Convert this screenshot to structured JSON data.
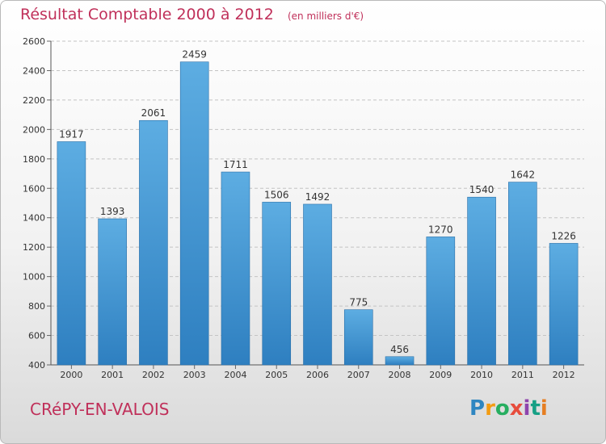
{
  "header": {
    "title": "Résultat Comptable 2000 à 2012",
    "subtitle": "(en milliers d'€)"
  },
  "footer": {
    "place": "CRéPY-EN-VALOIS"
  },
  "logo": {
    "letters": [
      "P",
      "r",
      "o",
      "x",
      "i",
      "t",
      "i"
    ]
  },
  "colors": {
    "bar_top": "#5dade2",
    "bar_bottom": "#2e7fc0",
    "accent": "#c0305a"
  },
  "chart_data": {
    "type": "bar",
    "title": "Résultat Comptable 2000 à 2012",
    "subtitle": "(en milliers d'€)",
    "categories": [
      "2000",
      "2001",
      "2002",
      "2003",
      "2004",
      "2005",
      "2006",
      "2007",
      "2008",
      "2009",
      "2010",
      "2011",
      "2012"
    ],
    "values": [
      1917,
      1393,
      2061,
      2459,
      1711,
      1506,
      1492,
      775,
      456,
      1270,
      1540,
      1642,
      1226
    ],
    "ylim": [
      400,
      2600
    ],
    "yticks": [
      400,
      600,
      800,
      1000,
      1200,
      1400,
      1600,
      1800,
      2000,
      2200,
      2400,
      2600
    ],
    "grid": true
  }
}
